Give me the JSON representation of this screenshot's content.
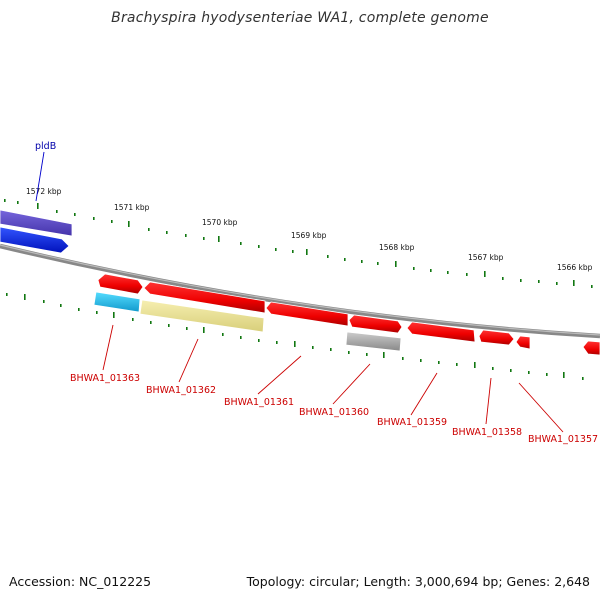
{
  "title": "Brachyspira hyodysenteriae WA1, complete genome",
  "footer": {
    "accession": "Accession: NC_012225",
    "info": "Topology: circular; Length: 3,000,694 bp; Genes: 2,648"
  },
  "colors": {
    "cds_forward": "#ee0000",
    "cds_highlight_blue": "#0022ee",
    "cds_purple": "#6655cc",
    "cds_cyan": "#22bbee",
    "cds_yellow": "#eee499",
    "cds_grey": "#aaaaaa",
    "backbone": "#888888",
    "tick_green": "#117711",
    "label_red": "#cc0000",
    "label_blue": "#0000aa"
  },
  "ruler": {
    "ticks": [
      "1572 kbp",
      "1571 kbp",
      "1570 kbp",
      "1569 kbp",
      "1568 kbp",
      "1567 kbp",
      "1566 kbp"
    ]
  },
  "genes": [
    {
      "label": "pldB",
      "color": "label_blue"
    },
    {
      "label": "BHWA1_01363",
      "color": "label_red"
    },
    {
      "label": "BHWA1_01362",
      "color": "label_red"
    },
    {
      "label": "BHWA1_01361",
      "color": "label_red"
    },
    {
      "label": "BHWA1_01360",
      "color": "label_red"
    },
    {
      "label": "BHWA1_01359",
      "color": "label_red"
    },
    {
      "label": "BHWA1_01358",
      "color": "label_red"
    },
    {
      "label": "BHWA1_01357",
      "color": "label_red"
    }
  ]
}
